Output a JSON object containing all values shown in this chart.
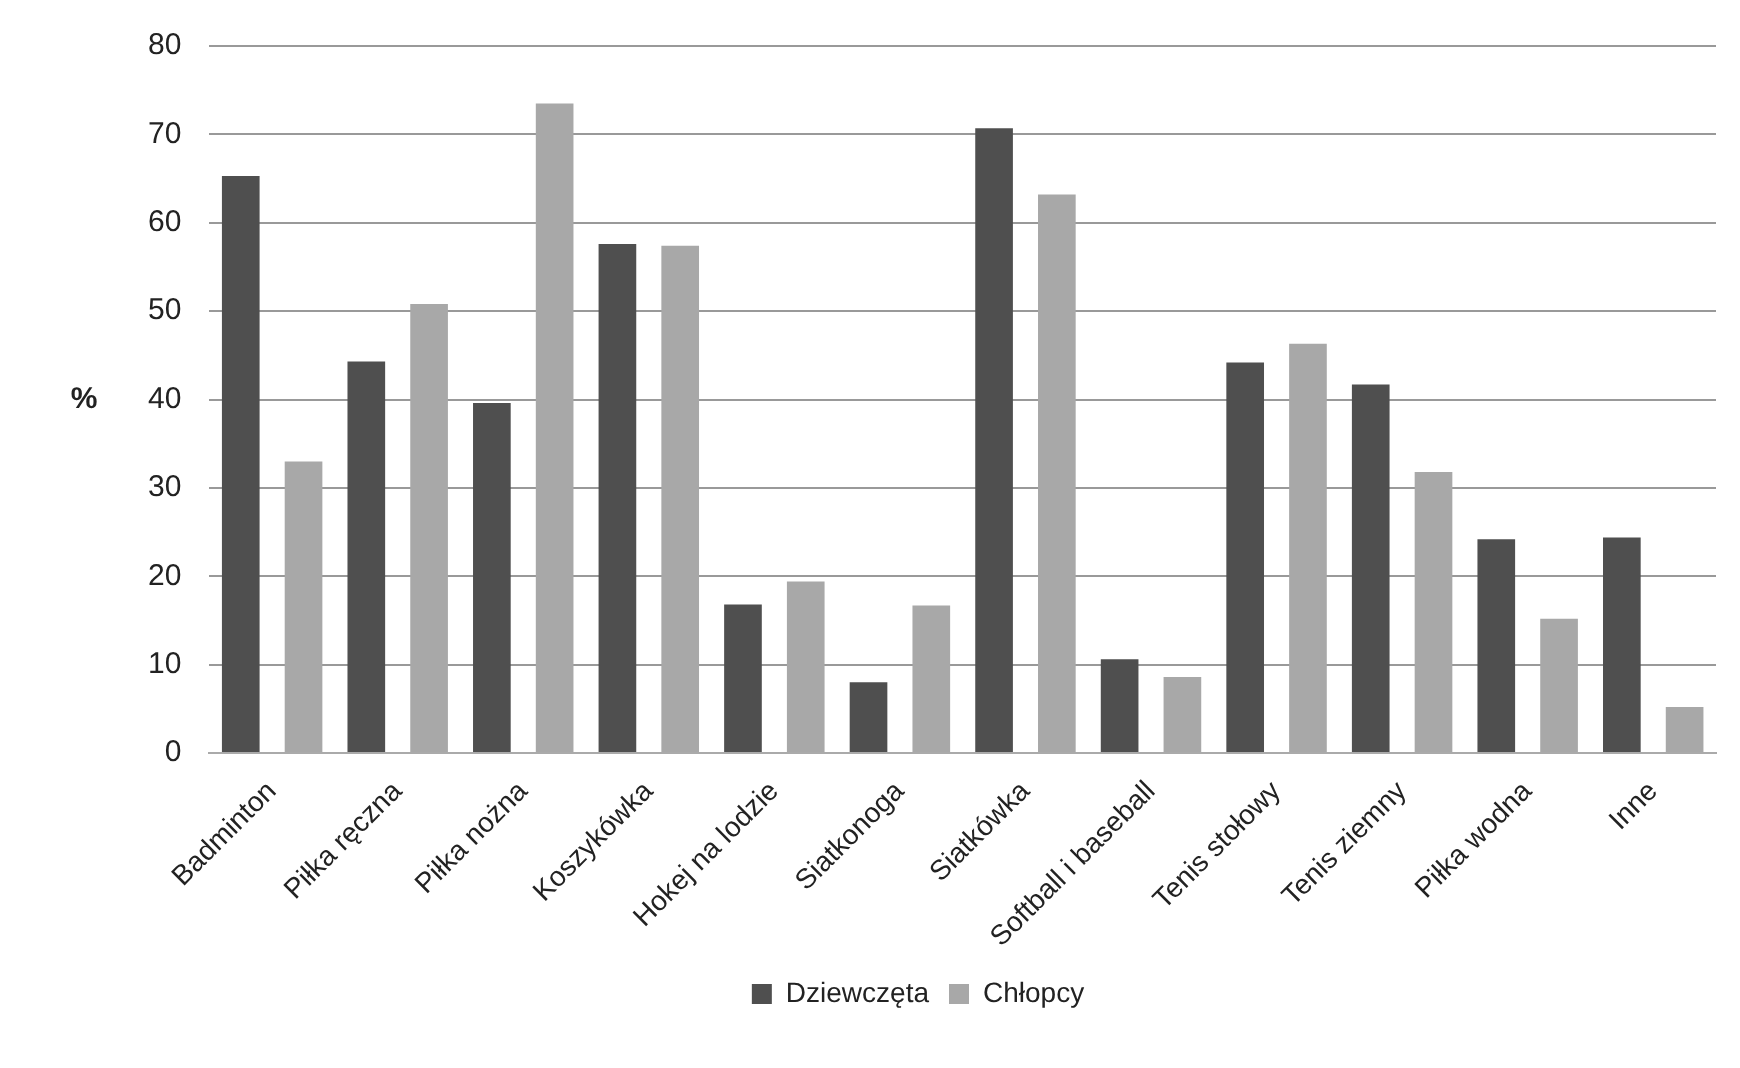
{
  "chart_data": {
    "type": "bar",
    "ylabel": "%",
    "categories": [
      "Badminton",
      "Piłka ręczna",
      "Piłka nożna",
      "Koszykówka",
      "Hokej na lodzie",
      "Siatkonoga",
      "Siatkówka",
      "Softball i baseball",
      "Tenis stołowy",
      "Tenis ziemny",
      "Piłka wodna",
      "Inne"
    ],
    "series": [
      {
        "name": "Dziewczęta",
        "color": "#4f4f4f",
        "values": [
          65.3,
          44.3,
          39.6,
          57.6,
          16.8,
          8.0,
          70.7,
          10.6,
          44.2,
          41.7,
          24.2,
          24.4
        ]
      },
      {
        "name": "Chłopcy",
        "color": "#a8a8a8",
        "values": [
          33.0,
          50.8,
          73.5,
          57.4,
          19.4,
          16.7,
          63.2,
          8.6,
          46.3,
          31.8,
          15.2,
          5.2
        ]
      }
    ],
    "ylim": [
      0,
      80
    ],
    "yticks": [
      0,
      10,
      20,
      30,
      40,
      50,
      60,
      70,
      80
    ],
    "grid": "y",
    "legend": "bottom"
  }
}
